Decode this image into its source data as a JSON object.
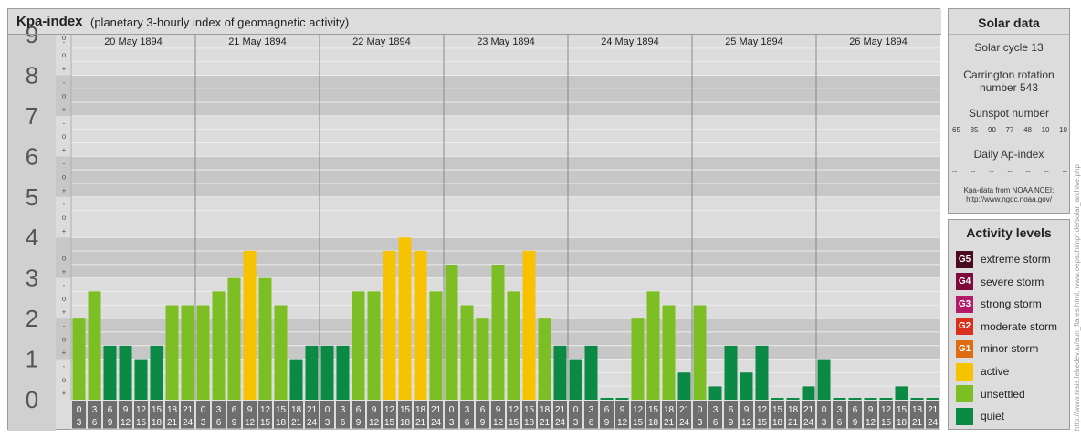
{
  "header": {
    "title": "Kpa-index",
    "subtitle": "(planetary 3-hourly index of geomagnetic activity)"
  },
  "chart_data": {
    "type": "bar",
    "title": "Kpa-index",
    "subtitle": "(planetary 3-hourly index of geomagnetic activity)",
    "ylim": [
      0,
      9
    ],
    "y_major_ticks": [
      "0",
      "1",
      "2",
      "3",
      "4",
      "5",
      "6",
      "7",
      "8",
      "9"
    ],
    "y_minor_ticks": [
      "+",
      "o",
      "-"
    ],
    "days": [
      "20 May 1894",
      "21 May 1894",
      "22 May 1894",
      "23 May 1894",
      "24 May 1894",
      "25 May 1894",
      "26 May 1894"
    ],
    "hour_labels": [
      [
        "0",
        "3"
      ],
      [
        "3",
        "6"
      ],
      [
        "6",
        "9"
      ],
      [
        "9",
        "12"
      ],
      [
        "12",
        "15"
      ],
      [
        "15",
        "18"
      ],
      [
        "18",
        "21"
      ],
      [
        "21",
        "24"
      ]
    ],
    "values": [
      [
        2.0,
        2.67,
        1.33,
        1.33,
        1.0,
        1.33,
        2.33,
        2.33
      ],
      [
        2.33,
        2.67,
        3.0,
        3.67,
        3.0,
        2.33,
        1.0,
        1.33
      ],
      [
        1.33,
        1.33,
        2.67,
        2.67,
        3.67,
        4.0,
        3.67,
        2.67
      ],
      [
        3.33,
        2.33,
        2.0,
        3.33,
        2.67,
        3.67,
        2.0,
        1.33
      ],
      [
        1.0,
        1.33,
        0.0,
        0.0,
        2.0,
        2.67,
        2.33,
        0.67
      ],
      [
        2.33,
        0.33,
        1.33,
        0.67,
        1.33,
        0.0,
        0.0,
        0.33
      ],
      [
        1.0,
        0.0,
        0.0,
        0.0,
        0.0,
        0.33,
        0.0,
        0.0
      ]
    ],
    "levels": {
      "quiet": "#0a8a45",
      "unsettled": "#7cbe24",
      "active": "#f7c200"
    }
  },
  "solar": {
    "title": "Solar data",
    "cycle": "Solar cycle 13",
    "carrington_line1": "Carrington rotation",
    "carrington_line2": "number 543",
    "sunspot_title": "Sunspot number",
    "sunspot_values": [
      "65",
      "35",
      "90",
      "77",
      "48",
      "10",
      "10"
    ],
    "ap_title": "Daily Ap-index",
    "ap_values": [
      "--",
      "--",
      "--",
      "--",
      "--",
      "--",
      "--"
    ],
    "source_line1": "Kpa-data from NOAA NCEI:",
    "source_line2": "http://www.ngdc.noaa.gov/"
  },
  "activity": {
    "title": "Activity levels",
    "items": [
      {
        "badge": "G5",
        "label": "extreme storm",
        "color": "#4a0a22"
      },
      {
        "badge": "G4",
        "label": "severe storm",
        "color": "#7d0a3a"
      },
      {
        "badge": "G3",
        "label": "strong storm",
        "color": "#b31a6a"
      },
      {
        "badge": "G2",
        "label": "moderate storm",
        "color": "#d92f1d"
      },
      {
        "badge": "G1",
        "label": "minor storm",
        "color": "#e06c10"
      },
      {
        "badge": "",
        "label": "active",
        "color": "#f7c200"
      },
      {
        "badge": "",
        "label": "unsettled",
        "color": "#7cbe24"
      },
      {
        "badge": "",
        "label": "quiet",
        "color": "#0a8a45"
      }
    ]
  },
  "credit": "http://www.tesis.lebedev.ru/sun_flares.html, www.oepschimpf.de/solar_archive.php"
}
